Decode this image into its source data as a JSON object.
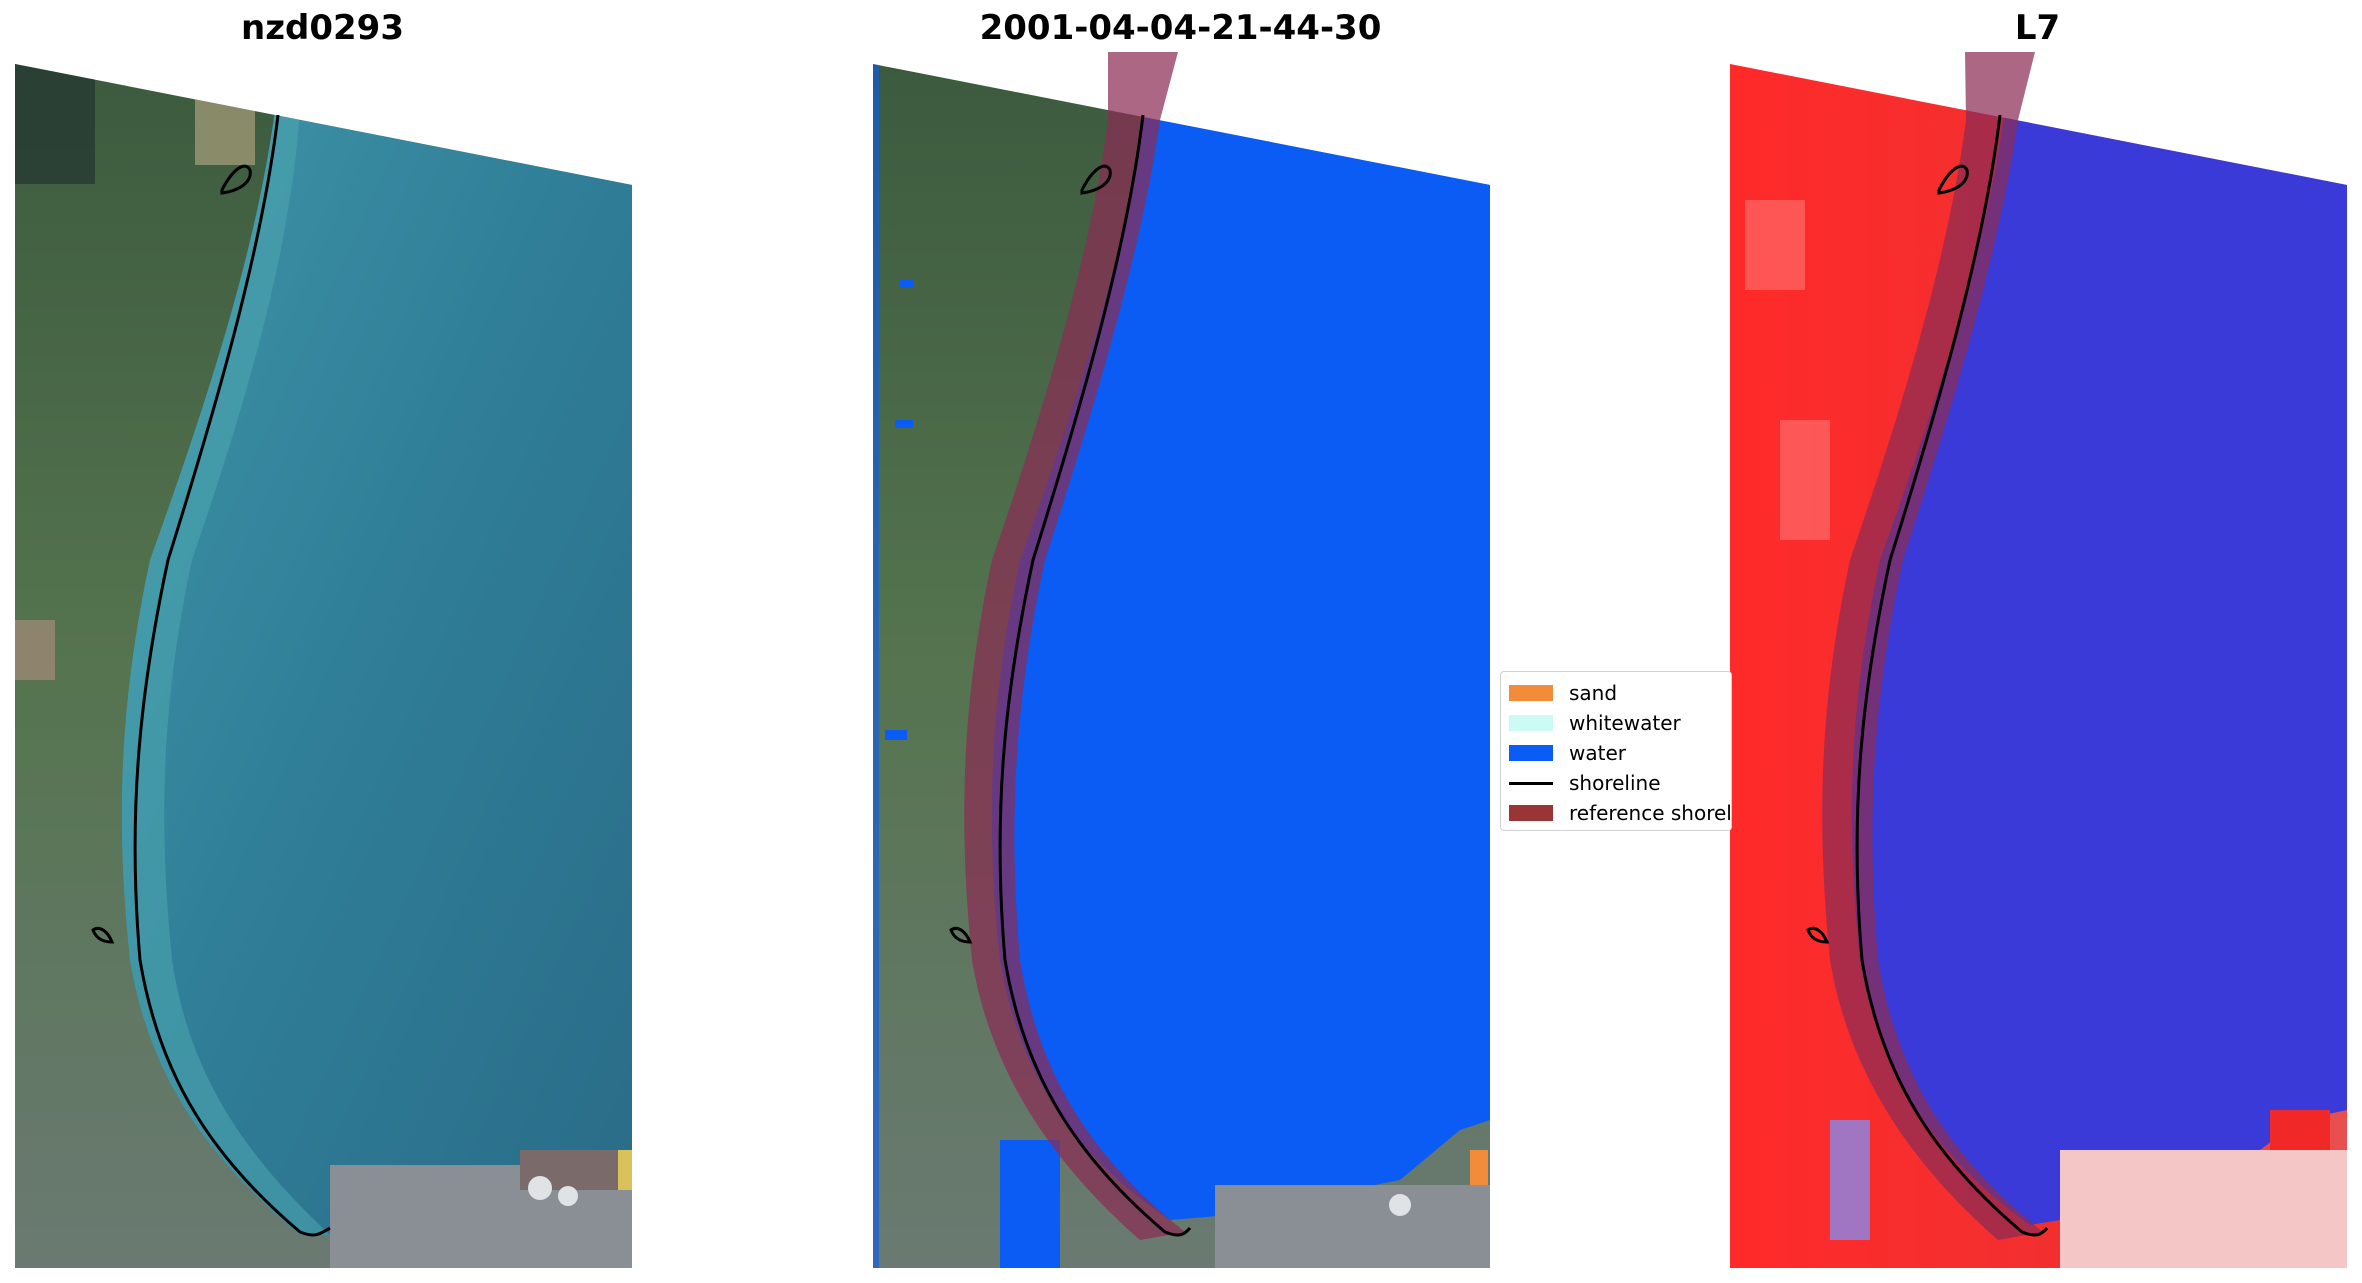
{
  "panels": [
    {
      "title": "nzd0293",
      "kind": "rgb"
    },
    {
      "title": "2001-04-04-21-44-30",
      "kind": "classified"
    },
    {
      "title": "L7",
      "kind": "index"
    }
  ],
  "legend": {
    "items": [
      {
        "label": "sand",
        "type": "patch",
        "color": "#f28c3a"
      },
      {
        "label": "whitewater",
        "type": "patch",
        "color": "#ccfaf5"
      },
      {
        "label": "water",
        "type": "patch",
        "color": "#0a5cf5"
      },
      {
        "label": "shoreline",
        "type": "line",
        "color": "#000000"
      },
      {
        "label": "reference shoreline",
        "type": "patch",
        "color": "#9a3535"
      }
    ]
  },
  "colors": {
    "sea_rgb": "#2f7d97",
    "land_rgb": "#4d6b4a",
    "water_class": "#0a5cf5",
    "reference_band": "#8a2c55",
    "land_index": "#f02828",
    "water_index": "#3a3ad8"
  }
}
